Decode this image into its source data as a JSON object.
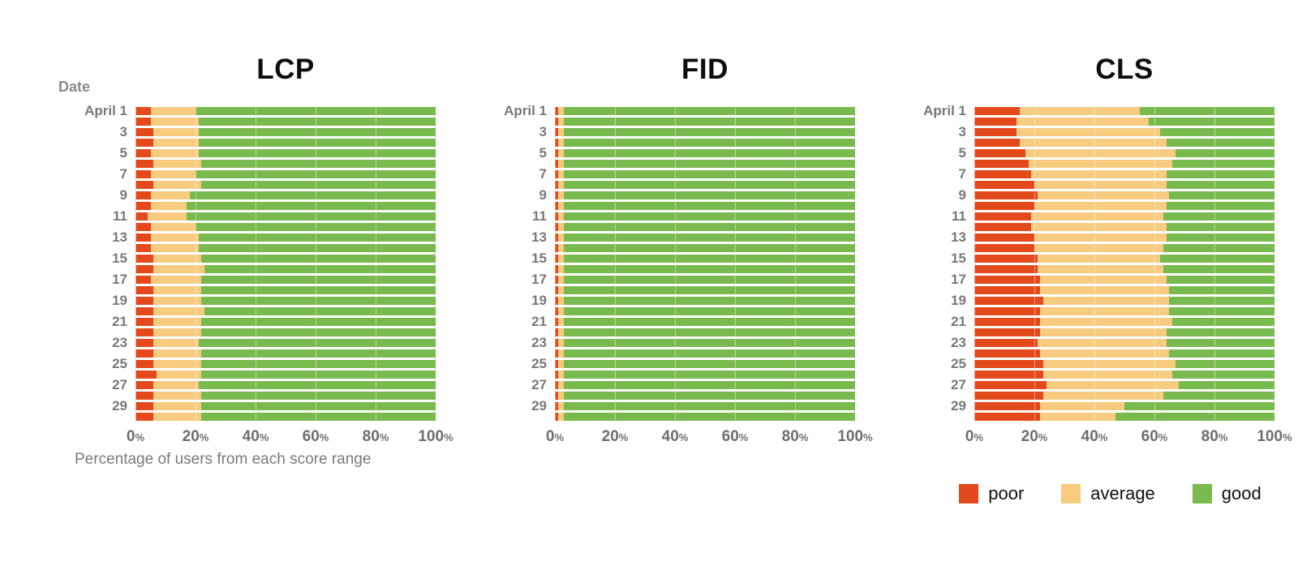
{
  "date_axis_label": "Date",
  "xaxis_label": "Percentage of users from each score range",
  "colors": {
    "poor": "#E3491A",
    "average": "#F8CC80",
    "good": "#79BA4E",
    "grid": "#dcdcdc"
  },
  "legend": {
    "items": [
      {
        "label": "poor",
        "color": "#E3491A"
      },
      {
        "label": "average",
        "color": "#F8CC80"
      },
      {
        "label": "good",
        "color": "#79BA4E"
      }
    ]
  },
  "axis": {
    "ticks": [
      0,
      20,
      40,
      60,
      80,
      100
    ],
    "unit": "%"
  },
  "chart_data": [
    {
      "type": "bar",
      "title": "LCP",
      "stacked": true,
      "orientation": "horizontal",
      "series_names": [
        "poor",
        "average",
        "good"
      ],
      "xlim": [
        0,
        100
      ],
      "days": [
        {
          "label": "April 1",
          "values": [
            5,
            15,
            80
          ]
        },
        {
          "label": "",
          "values": [
            5,
            16,
            79
          ]
        },
        {
          "label": "3",
          "values": [
            6,
            15,
            79
          ]
        },
        {
          "label": "",
          "values": [
            6,
            15,
            79
          ]
        },
        {
          "label": "5",
          "values": [
            5,
            16,
            79
          ]
        },
        {
          "label": "",
          "values": [
            6,
            16,
            78
          ]
        },
        {
          "label": "7",
          "values": [
            5,
            15,
            80
          ]
        },
        {
          "label": "",
          "values": [
            6,
            16,
            78
          ]
        },
        {
          "label": "9",
          "values": [
            5,
            13,
            82
          ]
        },
        {
          "label": "",
          "values": [
            5,
            12,
            83
          ]
        },
        {
          "label": "11",
          "values": [
            4,
            13,
            83
          ]
        },
        {
          "label": "",
          "values": [
            5,
            15,
            80
          ]
        },
        {
          "label": "13",
          "values": [
            5,
            16,
            79
          ]
        },
        {
          "label": "",
          "values": [
            5,
            16,
            79
          ]
        },
        {
          "label": "15",
          "values": [
            6,
            16,
            78
          ]
        },
        {
          "label": "",
          "values": [
            6,
            17,
            77
          ]
        },
        {
          "label": "17",
          "values": [
            5,
            17,
            78
          ]
        },
        {
          "label": "",
          "values": [
            6,
            16,
            78
          ]
        },
        {
          "label": "19",
          "values": [
            6,
            16,
            78
          ]
        },
        {
          "label": "",
          "values": [
            6,
            17,
            77
          ]
        },
        {
          "label": "21",
          "values": [
            6,
            16,
            78
          ]
        },
        {
          "label": "",
          "values": [
            6,
            16,
            78
          ]
        },
        {
          "label": "23",
          "values": [
            6,
            15,
            79
          ]
        },
        {
          "label": "",
          "values": [
            6,
            16,
            78
          ]
        },
        {
          "label": "25",
          "values": [
            6,
            16,
            78
          ]
        },
        {
          "label": "",
          "values": [
            7,
            15,
            78
          ]
        },
        {
          "label": "27",
          "values": [
            6,
            15,
            79
          ]
        },
        {
          "label": "",
          "values": [
            6,
            16,
            78
          ]
        },
        {
          "label": "29",
          "values": [
            6,
            16,
            78
          ]
        },
        {
          "label": "",
          "values": [
            6,
            16,
            78
          ]
        }
      ]
    },
    {
      "type": "bar",
      "title": "FID",
      "stacked": true,
      "orientation": "horizontal",
      "series_names": [
        "poor",
        "average",
        "good"
      ],
      "xlim": [
        0,
        100
      ],
      "days": [
        {
          "label": "April 1",
          "values": [
            1,
            2,
            97
          ]
        },
        {
          "label": "",
          "values": [
            1,
            2,
            97
          ]
        },
        {
          "label": "3",
          "values": [
            1,
            2,
            97
          ]
        },
        {
          "label": "",
          "values": [
            1,
            2,
            97
          ]
        },
        {
          "label": "5",
          "values": [
            1,
            2,
            97
          ]
        },
        {
          "label": "",
          "values": [
            1,
            2,
            97
          ]
        },
        {
          "label": "7",
          "values": [
            1,
            2,
            97
          ]
        },
        {
          "label": "",
          "values": [
            1,
            2,
            97
          ]
        },
        {
          "label": "9",
          "values": [
            1,
            2,
            97
          ]
        },
        {
          "label": "",
          "values": [
            1,
            2,
            97
          ]
        },
        {
          "label": "11",
          "values": [
            1,
            2,
            97
          ]
        },
        {
          "label": "",
          "values": [
            1,
            2,
            97
          ]
        },
        {
          "label": "13",
          "values": [
            1,
            2,
            97
          ]
        },
        {
          "label": "",
          "values": [
            1,
            2,
            97
          ]
        },
        {
          "label": "15",
          "values": [
            1,
            2,
            97
          ]
        },
        {
          "label": "",
          "values": [
            1,
            2,
            97
          ]
        },
        {
          "label": "17",
          "values": [
            1,
            2,
            97
          ]
        },
        {
          "label": "",
          "values": [
            1,
            2,
            97
          ]
        },
        {
          "label": "19",
          "values": [
            1,
            2,
            97
          ]
        },
        {
          "label": "",
          "values": [
            1,
            2,
            97
          ]
        },
        {
          "label": "21",
          "values": [
            1,
            2,
            97
          ]
        },
        {
          "label": "",
          "values": [
            1,
            2,
            97
          ]
        },
        {
          "label": "23",
          "values": [
            1,
            2,
            97
          ]
        },
        {
          "label": "",
          "values": [
            1,
            2,
            97
          ]
        },
        {
          "label": "25",
          "values": [
            1,
            2,
            97
          ]
        },
        {
          "label": "",
          "values": [
            1,
            2,
            97
          ]
        },
        {
          "label": "27",
          "values": [
            1,
            2,
            97
          ]
        },
        {
          "label": "",
          "values": [
            1,
            2,
            97
          ]
        },
        {
          "label": "29",
          "values": [
            1,
            2,
            97
          ]
        },
        {
          "label": "",
          "values": [
            1,
            2,
            97
          ]
        }
      ]
    },
    {
      "type": "bar",
      "title": "CLS",
      "stacked": true,
      "orientation": "horizontal",
      "series_names": [
        "poor",
        "average",
        "good"
      ],
      "xlim": [
        0,
        100
      ],
      "days": [
        {
          "label": "April 1",
          "values": [
            15,
            40,
            45
          ]
        },
        {
          "label": "",
          "values": [
            14,
            44,
            42
          ]
        },
        {
          "label": "3",
          "values": [
            14,
            48,
            38
          ]
        },
        {
          "label": "",
          "values": [
            15,
            49,
            36
          ]
        },
        {
          "label": "5",
          "values": [
            17,
            50,
            33
          ]
        },
        {
          "label": "",
          "values": [
            18,
            48,
            34
          ]
        },
        {
          "label": "7",
          "values": [
            19,
            45,
            36
          ]
        },
        {
          "label": "",
          "values": [
            20,
            44,
            36
          ]
        },
        {
          "label": "9",
          "values": [
            21,
            44,
            35
          ]
        },
        {
          "label": "",
          "values": [
            20,
            44,
            36
          ]
        },
        {
          "label": "11",
          "values": [
            19,
            44,
            37
          ]
        },
        {
          "label": "",
          "values": [
            19,
            45,
            36
          ]
        },
        {
          "label": "13",
          "values": [
            20,
            44,
            36
          ]
        },
        {
          "label": "",
          "values": [
            20,
            43,
            37
          ]
        },
        {
          "label": "15",
          "values": [
            21,
            41,
            38
          ]
        },
        {
          "label": "",
          "values": [
            21,
            42,
            37
          ]
        },
        {
          "label": "17",
          "values": [
            22,
            42,
            36
          ]
        },
        {
          "label": "",
          "values": [
            22,
            43,
            35
          ]
        },
        {
          "label": "19",
          "values": [
            23,
            42,
            35
          ]
        },
        {
          "label": "",
          "values": [
            22,
            43,
            35
          ]
        },
        {
          "label": "21",
          "values": [
            22,
            44,
            34
          ]
        },
        {
          "label": "",
          "values": [
            22,
            42,
            36
          ]
        },
        {
          "label": "23",
          "values": [
            21,
            43,
            36
          ]
        },
        {
          "label": "",
          "values": [
            22,
            43,
            35
          ]
        },
        {
          "label": "25",
          "values": [
            23,
            44,
            33
          ]
        },
        {
          "label": "",
          "values": [
            23,
            43,
            34
          ]
        },
        {
          "label": "27",
          "values": [
            24,
            44,
            32
          ]
        },
        {
          "label": "",
          "values": [
            23,
            40,
            37
          ]
        },
        {
          "label": "29",
          "values": [
            22,
            28,
            50
          ]
        },
        {
          "label": "",
          "values": [
            22,
            25,
            53
          ]
        }
      ]
    }
  ]
}
